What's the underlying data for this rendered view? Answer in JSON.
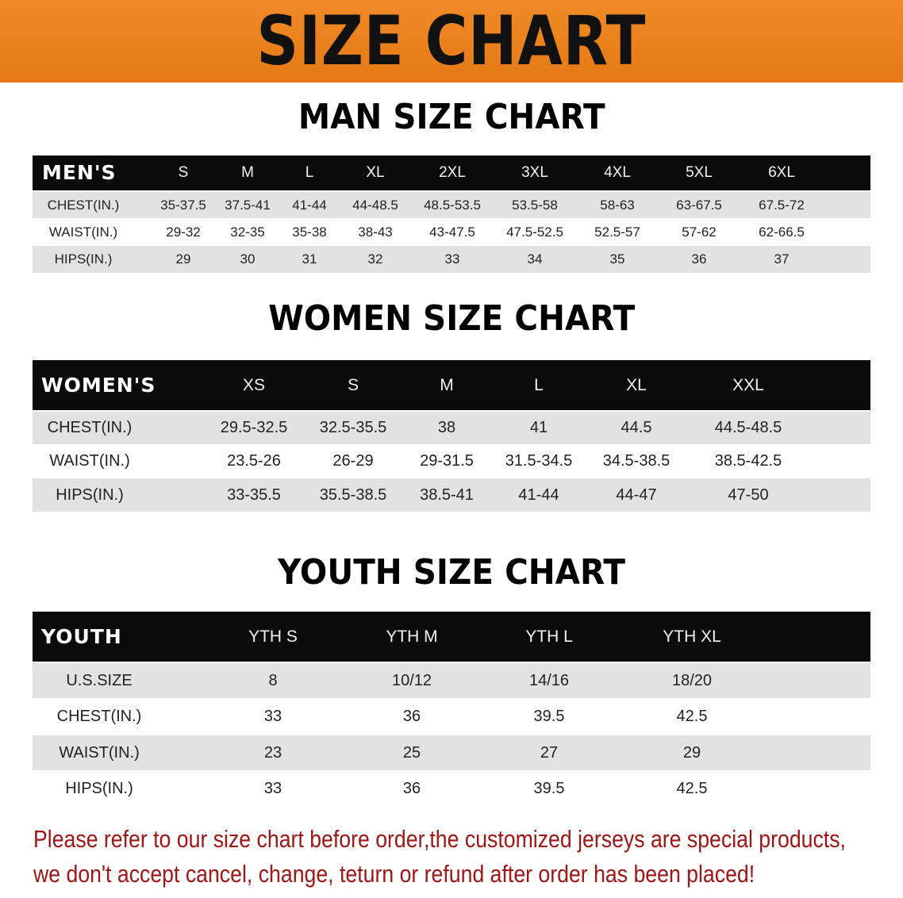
{
  "banner_title": "SIZE CHART",
  "men": {
    "title": "MAN SIZE CHART",
    "header": [
      "MEN'S",
      "S",
      "M",
      "L",
      "XL",
      "2XL",
      "3XL",
      "4XL",
      "5XL",
      "6XL"
    ],
    "rows": [
      [
        "CHEST(IN.)",
        "35-37.5",
        "37.5-41",
        "41-44",
        "44-48.5",
        "48.5-53.5",
        "53.5-58",
        "58-63",
        "63-67.5",
        "67.5-72"
      ],
      [
        "WAIST(IN.)",
        "29-32",
        "32-35",
        "35-38",
        "38-43",
        "43-47.5",
        "47.5-52.5",
        "52.5-57",
        "57-62",
        "62-66.5"
      ],
      [
        "HIPS(IN.)",
        "29",
        "30",
        "31",
        "32",
        "33",
        "34",
        "35",
        "36",
        "37"
      ]
    ]
  },
  "women": {
    "title": "WOMEN SIZE CHART",
    "header": [
      "WOMEN'S",
      "XS",
      "S",
      "M",
      "L",
      "XL",
      "XXL"
    ],
    "rows": [
      [
        "CHEST(IN.)",
        "29.5-32.5",
        "32.5-35.5",
        "38",
        "41",
        "44.5",
        "44.5-48.5"
      ],
      [
        "WAIST(IN.)",
        "23.5-26",
        "26-29",
        "29-31.5",
        "31.5-34.5",
        "34.5-38.5",
        "38.5-42.5"
      ],
      [
        "HIPS(IN.)",
        "33-35.5",
        "35.5-38.5",
        "38.5-41",
        "41-44",
        "44-47",
        "47-50"
      ]
    ]
  },
  "youth": {
    "title": "YOUTH SIZE CHART",
    "header": [
      "YOUTH",
      "YTH S",
      "YTH M",
      "YTH L",
      "YTH XL"
    ],
    "rows": [
      [
        "U.S.SIZE",
        "8",
        "10/12",
        "14/16",
        "18/20"
      ],
      [
        "CHEST(IN.)",
        "33",
        "36",
        "39.5",
        "42.5"
      ],
      [
        "WAIST(IN.)",
        "23",
        "25",
        "27",
        "29"
      ],
      [
        "HIPS(IN.)",
        "33",
        "36",
        "39.5",
        "42.5"
      ]
    ]
  },
  "notice": {
    "line1": "Please refer to our size chart before order,the customized jerseys are special products,",
    "line2": "we don't accept cancel, change, teturn or refund after order has been placed!"
  },
  "colors": {
    "banner": "#e8821c",
    "header_row": "#0b0b0b",
    "notice": "#a01616"
  }
}
